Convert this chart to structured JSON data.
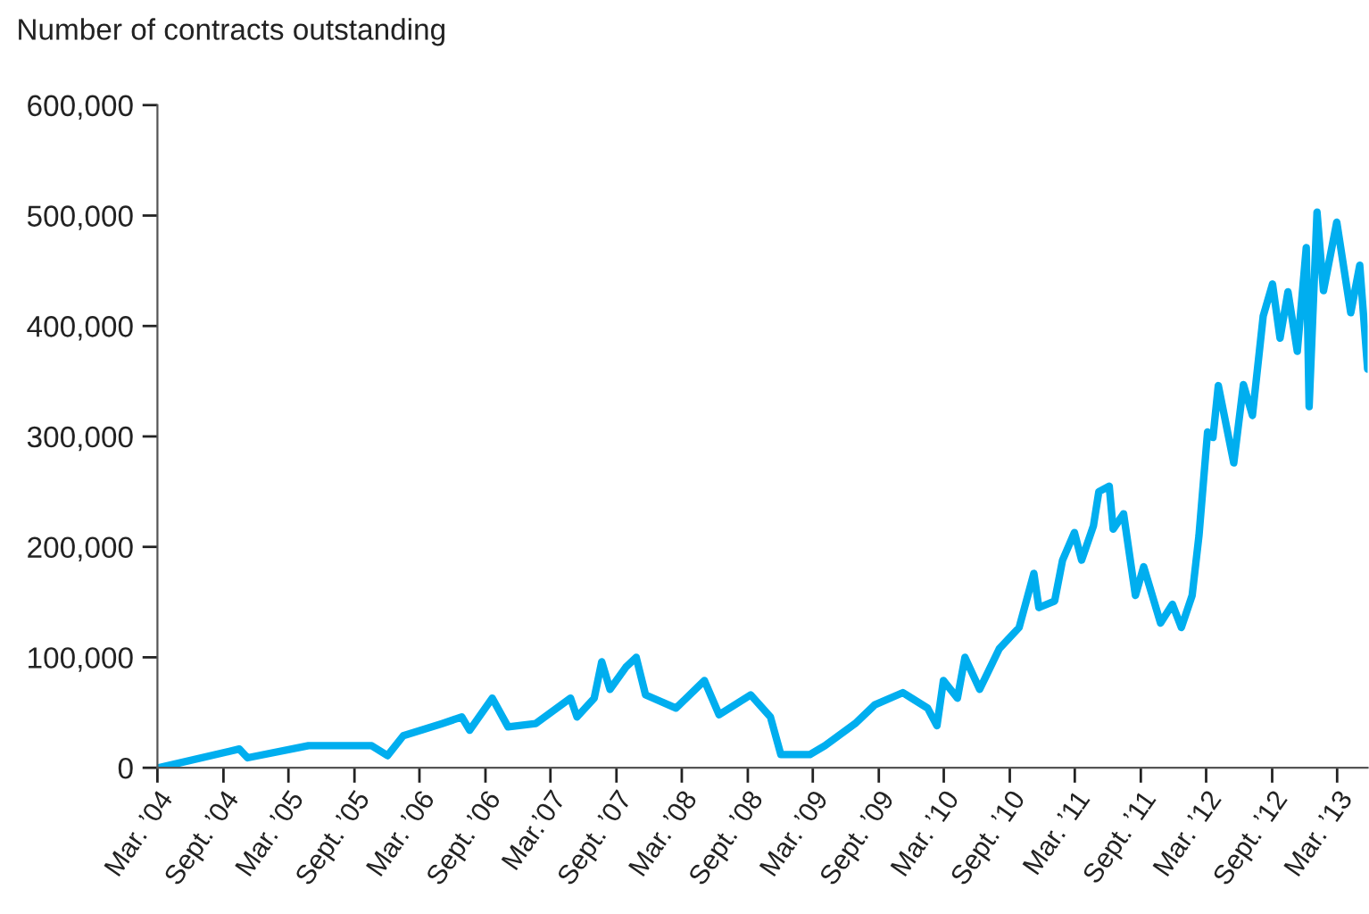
{
  "chart_data": {
    "type": "line",
    "ylabel": "Number of contracts outstanding",
    "x": [
      "2004-03-05",
      "2004-10-15",
      "2004-11-07",
      "2005-04-26",
      "2005-10-19",
      "2005-12-02",
      "2006-01-15",
      "2006-05-03",
      "2006-06-27",
      "2006-07-19",
      "2006-09-20",
      "2006-11-03",
      "2007-01-19",
      "2007-04-26",
      "2007-05-14",
      "2007-07-01",
      "2007-07-22",
      "2007-08-14",
      "2007-09-27",
      "2007-10-26",
      "2007-11-21",
      "2008-02-14",
      "2008-05-03",
      "2008-06-13",
      "2008-09-09",
      "2008-11-03",
      "2008-12-02",
      "2009-02-21",
      "2009-04-04",
      "2009-06-27",
      "2009-08-21",
      "2009-11-07",
      "2010-01-15",
      "2010-02-10",
      "2010-02-28",
      "2010-04-08",
      "2010-04-29",
      "2010-06-09",
      "2010-08-03",
      "2010-09-27",
      "2010-11-07",
      "2010-11-21",
      "2011-01-04",
      "2011-01-26",
      "2011-02-28",
      "2011-03-20",
      "2011-04-22",
      "2011-05-07",
      "2011-06-05",
      "2011-06-16",
      "2011-07-15",
      "2011-08-17",
      "2011-09-09",
      "2011-10-26",
      "2011-11-28",
      "2011-12-23",
      "2012-01-22",
      "2012-02-10",
      "2012-03-05",
      "2012-03-20",
      "2012-04-04",
      "2012-05-17",
      "2012-06-13",
      "2012-07-08",
      "2012-08-07",
      "2012-09-02",
      "2012-09-23",
      "2012-10-15",
      "2012-11-10",
      "2012-12-05",
      "2012-12-13",
      "2013-01-04",
      "2013-01-22",
      "2013-02-28",
      "2013-04-08",
      "2013-05-03",
      "2013-05-25"
    ],
    "series": [
      {
        "color": "#00aeef",
        "values": [
          0,
          17000,
          9000,
          20000,
          20000,
          11000,
          29000,
          40000,
          46000,
          34000,
          63000,
          37000,
          40000,
          63000,
          46000,
          63000,
          96000,
          71000,
          91000,
          100000,
          66000,
          54000,
          79000,
          48000,
          66000,
          46000,
          12000,
          12000,
          20000,
          40000,
          57000,
          68000,
          54000,
          38000,
          79000,
          63000,
          100000,
          71000,
          108000,
          127000,
          176000,
          145000,
          151000,
          188000,
          213000,
          188000,
          219000,
          250000,
          255000,
          216000,
          230000,
          156000,
          182000,
          131000,
          148000,
          127000,
          156000,
          210000,
          304000,
          299000,
          346000,
          276000,
          347000,
          319000,
          409000,
          438000,
          389000,
          431000,
          377000,
          471000,
          327000,
          503000,
          432000,
          494000,
          412000,
          455000,
          361000
        ]
      }
    ],
    "xlim": [
      "2004-03-01",
      "2013-05-25"
    ],
    "xticks": [
      {
        "value": "2004-03-01",
        "label": "Mar. ’04"
      },
      {
        "value": "2004-09-01",
        "label": "Sept. ’04"
      },
      {
        "value": "2005-03-01",
        "label": "Mar. ’05"
      },
      {
        "value": "2005-09-01",
        "label": "Sept. ’05"
      },
      {
        "value": "2006-03-01",
        "label": "Mar. ’06"
      },
      {
        "value": "2006-09-01",
        "label": "Sept. ’06"
      },
      {
        "value": "2007-03-01",
        "label": "Mar.’07"
      },
      {
        "value": "2007-09-01",
        "label": "Sept. ’07"
      },
      {
        "value": "2008-03-01",
        "label": "Mar. ’08"
      },
      {
        "value": "2008-09-01",
        "label": "Sept. ’08"
      },
      {
        "value": "2009-03-01",
        "label": "Mar. ’09"
      },
      {
        "value": "2009-09-01",
        "label": "Sept. ’09"
      },
      {
        "value": "2010-03-01",
        "label": "Mar. ’10"
      },
      {
        "value": "2010-09-01",
        "label": "Sept. ’10"
      },
      {
        "value": "2011-03-01",
        "label": "Mar. ’11"
      },
      {
        "value": "2011-09-01",
        "label": "Sept. ’11"
      },
      {
        "value": "2012-03-01",
        "label": "Mar. ’12"
      },
      {
        "value": "2012-09-01",
        "label": "Sept. ’12"
      },
      {
        "value": "2013-03-01",
        "label": "Mar. ’13"
      }
    ],
    "ylim": [
      0,
      600000
    ],
    "yticks": [
      0,
      {
        "value": 100000,
        "label": "100,000"
      },
      {
        "value": 200000,
        "label": "200,000"
      },
      {
        "value": 300000,
        "label": "300,000"
      },
      {
        "value": 400000,
        "label": "400,000"
      },
      {
        "value": 500000,
        "label": "500,000"
      },
      {
        "value": 600000,
        "label": "600,000"
      }
    ],
    "grid": false,
    "legend": false,
    "marker": "none",
    "line_style": "solid"
  }
}
